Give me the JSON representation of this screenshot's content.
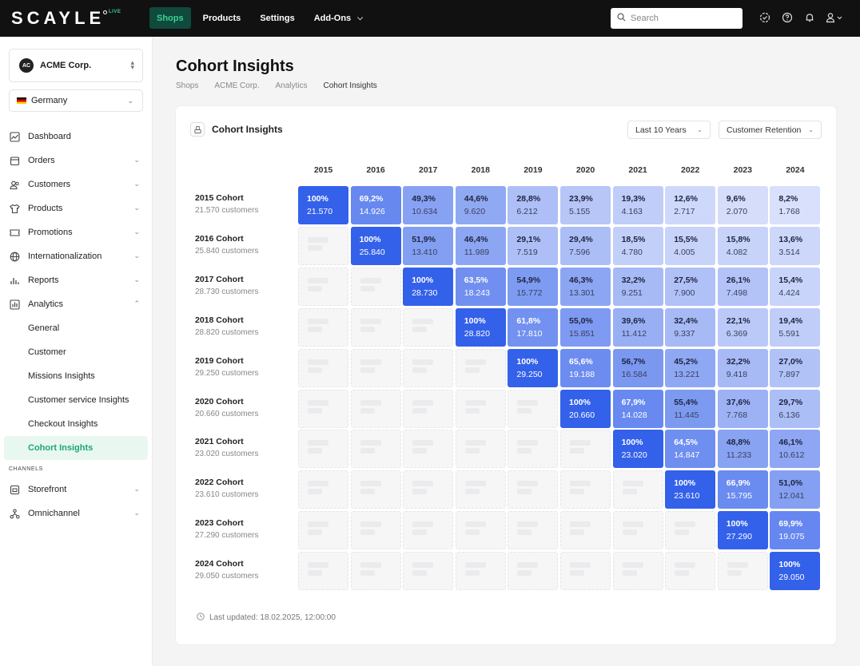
{
  "header": {
    "logo": "SCAYLE",
    "logo_badge": "LIVE",
    "nav": [
      {
        "label": "Shops",
        "active": true
      },
      {
        "label": "Products"
      },
      {
        "label": "Settings"
      },
      {
        "label": "Add-Ons",
        "dropdown": true
      }
    ],
    "search_placeholder": "Search",
    "icons": [
      "verified-icon",
      "help-icon",
      "bell-icon",
      "user-icon"
    ]
  },
  "sidebar": {
    "org": {
      "initials": "AC",
      "name": "ACME Corp."
    },
    "country": "Germany",
    "items": [
      {
        "label": "Dashboard",
        "icon": "chart-icon"
      },
      {
        "label": "Orders",
        "icon": "box-icon",
        "chevron": true
      },
      {
        "label": "Customers",
        "icon": "users-icon",
        "chevron": true
      },
      {
        "label": "Products",
        "icon": "shirt-icon",
        "chevron": true
      },
      {
        "label": "Promotions",
        "icon": "ticket-icon",
        "chevron": true
      },
      {
        "label": "Internationalization",
        "icon": "globe-icon",
        "chevron": true
      },
      {
        "label": "Reports",
        "icon": "bars-icon",
        "chevron": true
      },
      {
        "label": "Analytics",
        "icon": "analytics-icon",
        "chevron": true,
        "expanded": true
      }
    ],
    "analytics_sub": [
      "General",
      "Customer",
      "Missions Insights",
      "Customer service Insights",
      "Checkout Insights",
      "Cohort Insights"
    ],
    "active_sub": "Cohort Insights",
    "channels_label": "CHANNELS",
    "channels": [
      {
        "label": "Storefront",
        "icon": "storefront-icon",
        "chevron": true
      },
      {
        "label": "Omnichannel",
        "icon": "omnichannel-icon",
        "chevron": true
      }
    ]
  },
  "page": {
    "title": "Cohort Insights",
    "breadcrumbs": [
      "Shops",
      "ACME Corp.",
      "Analytics",
      "Cohort Insights"
    ]
  },
  "card": {
    "title": "Cohort Insights",
    "range": "Last 10 Years",
    "metric": "Customer Retention",
    "last_updated": "Last updated: 18.02.2025, 12:00:00"
  },
  "chart_data": {
    "type": "heatmap",
    "x": [
      "2015",
      "2016",
      "2017",
      "2018",
      "2019",
      "2020",
      "2021",
      "2022",
      "2023",
      "2024"
    ],
    "rows": [
      {
        "label": "2015 Cohort",
        "sub": "21.570 customers",
        "cells": [
          [
            "100%",
            "21.570"
          ],
          [
            "69,2%",
            "14.926"
          ],
          [
            "49,3%",
            "10.634"
          ],
          [
            "44,6%",
            "9.620"
          ],
          [
            "28,8%",
            "6.212"
          ],
          [
            "23,9%",
            "5.155"
          ],
          [
            "19,3%",
            "4.163"
          ],
          [
            "12,6%",
            "2.717"
          ],
          [
            "9,6%",
            "2.070"
          ],
          [
            "8,2%",
            "1.768"
          ]
        ]
      },
      {
        "label": "2016 Cohort",
        "sub": "25.840 customers",
        "cells": [
          null,
          [
            "100%",
            "25.840"
          ],
          [
            "51,9%",
            "13.410"
          ],
          [
            "46,4%",
            "11.989"
          ],
          [
            "29,1%",
            "7.519"
          ],
          [
            "29,4%",
            "7.596"
          ],
          [
            "18,5%",
            "4.780"
          ],
          [
            "15,5%",
            "4.005"
          ],
          [
            "15,8%",
            "4.082"
          ],
          [
            "13,6%",
            "3.514"
          ]
        ]
      },
      {
        "label": "2017 Cohort",
        "sub": "28.730 customers",
        "cells": [
          null,
          null,
          [
            "100%",
            "28.730"
          ],
          [
            "63,5%",
            "18.243"
          ],
          [
            "54,9%",
            "15.772"
          ],
          [
            "46,3%",
            "13.301"
          ],
          [
            "32,2%",
            "9.251"
          ],
          [
            "27,5%",
            "7.900"
          ],
          [
            "26,1%",
            "7.498"
          ],
          [
            "15,4%",
            "4.424"
          ]
        ]
      },
      {
        "label": "2018 Cohort",
        "sub": "28.820 customers",
        "cells": [
          null,
          null,
          null,
          [
            "100%",
            "28.820"
          ],
          [
            "61,8%",
            "17.810"
          ],
          [
            "55,0%",
            "15.851"
          ],
          [
            "39,6%",
            "11.412"
          ],
          [
            "32,4%",
            "9.337"
          ],
          [
            "22,1%",
            "6.369"
          ],
          [
            "19,4%",
            "5.591"
          ]
        ]
      },
      {
        "label": "2019 Cohort",
        "sub": "29.250 customers",
        "cells": [
          null,
          null,
          null,
          null,
          [
            "100%",
            "29.250"
          ],
          [
            "65,6%",
            "19.188"
          ],
          [
            "56,7%",
            "16.584"
          ],
          [
            "45,2%",
            "13.221"
          ],
          [
            "32,2%",
            "9.418"
          ],
          [
            "27,0%",
            "7.897"
          ]
        ]
      },
      {
        "label": "2020 Cohort",
        "sub": "20.660 customers",
        "cells": [
          null,
          null,
          null,
          null,
          null,
          [
            "100%",
            "20.660"
          ],
          [
            "67,9%",
            "14.028"
          ],
          [
            "55,4%",
            "11.445"
          ],
          [
            "37,6%",
            "7.768"
          ],
          [
            "29,7%",
            "6.136"
          ]
        ]
      },
      {
        "label": "2021 Cohort",
        "sub": "23.020 customers",
        "cells": [
          null,
          null,
          null,
          null,
          null,
          null,
          [
            "100%",
            "23.020"
          ],
          [
            "64,5%",
            "14.847"
          ],
          [
            "48,8%",
            "11.233"
          ],
          [
            "46,1%",
            "10.612"
          ]
        ]
      },
      {
        "label": "2022 Cohort",
        "sub": "23.610 customers",
        "cells": [
          null,
          null,
          null,
          null,
          null,
          null,
          null,
          [
            "100%",
            "23.610"
          ],
          [
            "66,9%",
            "15.795"
          ],
          [
            "51,0%",
            "12.041"
          ]
        ]
      },
      {
        "label": "2023 Cohort",
        "sub": "27.290 customers",
        "cells": [
          null,
          null,
          null,
          null,
          null,
          null,
          null,
          null,
          [
            "100%",
            "27.290"
          ],
          [
            "69,9%",
            "19.075"
          ]
        ]
      },
      {
        "label": "2024 Cohort",
        "sub": "29.050 customers",
        "cells": [
          null,
          null,
          null,
          null,
          null,
          null,
          null,
          null,
          null,
          [
            "100%",
            "29.050"
          ]
        ]
      }
    ],
    "color_scale": {
      "low": "#eef1fd",
      "high": "#3461ea"
    }
  }
}
